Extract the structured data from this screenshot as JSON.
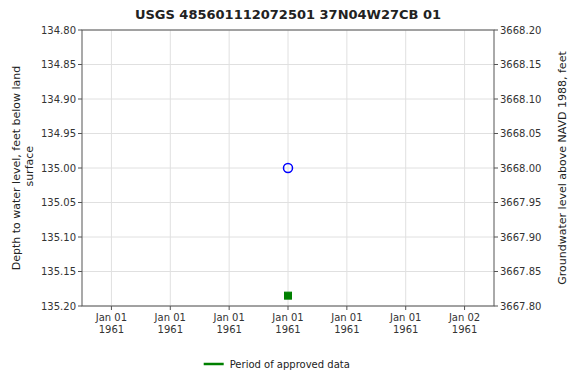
{
  "chart_data": {
    "type": "scatter",
    "title": "USGS 485601112072501 37N04W27CB  01",
    "ylabel": "Depth to water level, feet below land\n surface",
    "y2label": "Groundwater level above NAVD 1988, feet",
    "categories": [
      "Jan 01\n1961",
      "Jan 01\n1961",
      "Jan 01\n1961",
      "Jan 01\n1961",
      "Jan 01\n1961",
      "Jan 01\n1961",
      "Jan 02\n1961"
    ],
    "series": [
      {
        "color": "#0000ff",
        "marker": "open-circle",
        "values": [
          null,
          null,
          null,
          135.0,
          null,
          null,
          null
        ]
      },
      {
        "name": "Period of approved data",
        "color": "#008000",
        "marker": "square",
        "values": [
          null,
          null,
          null,
          135.185,
          null,
          null,
          null
        ]
      }
    ],
    "ylim": [
      135.2,
      134.8
    ],
    "yticks": [
      {
        "value": 134.8,
        "label": "134.80"
      },
      {
        "value": 134.85,
        "label": "134.85"
      },
      {
        "value": 134.9,
        "label": "134.90"
      },
      {
        "value": 134.95,
        "label": "134.95"
      },
      {
        "value": 135.0,
        "label": "135.00"
      },
      {
        "value": 135.05,
        "label": "135.05"
      },
      {
        "value": 135.1,
        "label": "135.10"
      },
      {
        "value": 135.15,
        "label": "135.15"
      },
      {
        "value": 135.2,
        "label": "135.20"
      }
    ],
    "y2lim": [
      3667.8,
      3668.2
    ],
    "y2ticks": [
      {
        "value": 3667.8,
        "label": "3667.80"
      },
      {
        "value": 3667.85,
        "label": "3667.85"
      },
      {
        "value": 3667.9,
        "label": "3667.90"
      },
      {
        "value": 3667.95,
        "label": "3667.95"
      },
      {
        "value": 3668.0,
        "label": "3668.00"
      },
      {
        "value": 3668.05,
        "label": "3668.05"
      },
      {
        "value": 3668.1,
        "label": "3668.10"
      },
      {
        "value": 3668.15,
        "label": "3668.15"
      },
      {
        "value": 3668.2,
        "label": "3668.20"
      }
    ],
    "grid": true,
    "legend": "bottom"
  }
}
